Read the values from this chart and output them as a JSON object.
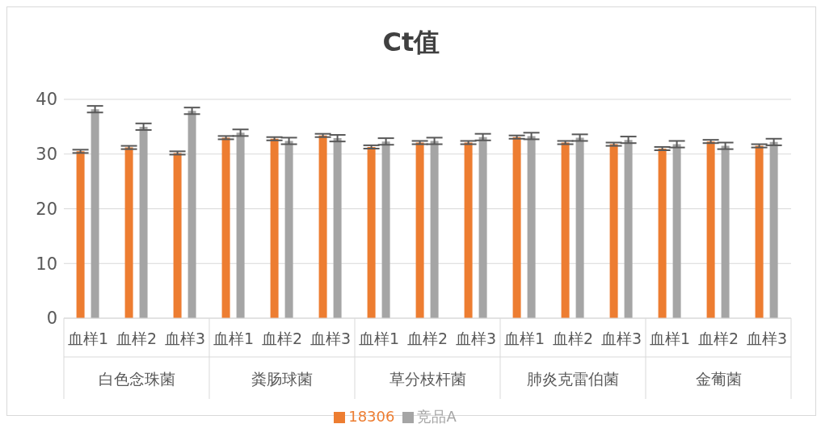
{
  "chart_data": {
    "type": "bar",
    "title": "Ct值",
    "categories": [
      "血样1",
      "血样2",
      "血样3",
      "血样1",
      "血样2",
      "血样3",
      "血样1",
      "血样2",
      "血样3",
      "血样1",
      "血样2",
      "血样3",
      "血样1",
      "血样2",
      "血样3"
    ],
    "annotations": [
      "白色念珠菌",
      "粪肠球菌",
      "草分枝杆菌",
      "肺炎克雷伯菌",
      "金葡菌"
    ],
    "series": [
      {
        "name": "18306",
        "color": "#ed7d31",
        "values": [
          30.5,
          31.2,
          30.2,
          33.0,
          32.8,
          33.4,
          31.3,
          32.1,
          32.1,
          33.1,
          32.1,
          31.8,
          31.0,
          32.3,
          31.5
        ],
        "errors": [
          0.3,
          0.3,
          0.3,
          0.3,
          0.3,
          0.3,
          0.3,
          0.3,
          0.3,
          0.3,
          0.3,
          0.3,
          0.3,
          0.3,
          0.3
        ]
      },
      {
        "name": "竞品A",
        "color": "#a5a5a5",
        "values": [
          38.2,
          35.0,
          37.9,
          33.9,
          32.4,
          32.9,
          32.3,
          32.4,
          33.1,
          33.3,
          33.0,
          32.6,
          31.8,
          31.5,
          32.2
        ],
        "errors": [
          0.6,
          0.6,
          0.6,
          0.6,
          0.6,
          0.6,
          0.6,
          0.6,
          0.6,
          0.6,
          0.6,
          0.6,
          0.6,
          0.6,
          0.6
        ]
      }
    ],
    "ylim": [
      0,
      40
    ],
    "yticks": [
      0,
      10,
      20,
      30,
      40
    ],
    "grid": "y",
    "legend": "bottom"
  }
}
